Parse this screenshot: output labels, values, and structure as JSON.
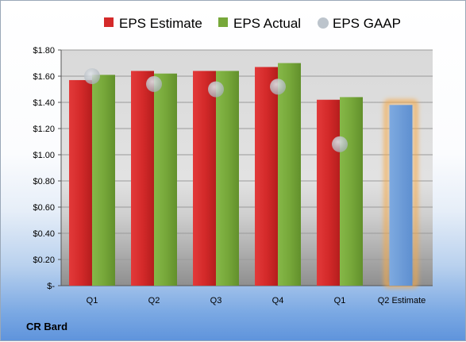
{
  "company": "CR Bard",
  "chart_data": {
    "type": "bar",
    "categories": [
      "Q1",
      "Q2",
      "Q3",
      "Q4",
      "Q1",
      "Q2 Estimate"
    ],
    "series": [
      {
        "name": "EPS Estimate",
        "color": "#d42a2a",
        "values": [
          1.57,
          1.64,
          1.64,
          1.67,
          1.42,
          null
        ]
      },
      {
        "name": "EPS Actual",
        "color": "#77a83a",
        "values": [
          1.61,
          1.62,
          1.64,
          1.7,
          1.44,
          null
        ]
      },
      {
        "name": "EPS GAAP",
        "color": "#bcc4cc",
        "values": [
          1.6,
          1.54,
          1.5,
          1.52,
          1.08,
          null
        ]
      }
    ],
    "q2_estimate": {
      "value": 1.38,
      "color": "#6f9fd8",
      "glow": "#f5a94a"
    },
    "y_ticks": [
      "$-",
      "$0.20",
      "$0.40",
      "$0.60",
      "$0.80",
      "$1.00",
      "$1.20",
      "$1.40",
      "$1.60",
      "$1.80"
    ],
    "ylim": [
      0,
      1.8
    ],
    "grid": true,
    "legend_position": "top"
  }
}
